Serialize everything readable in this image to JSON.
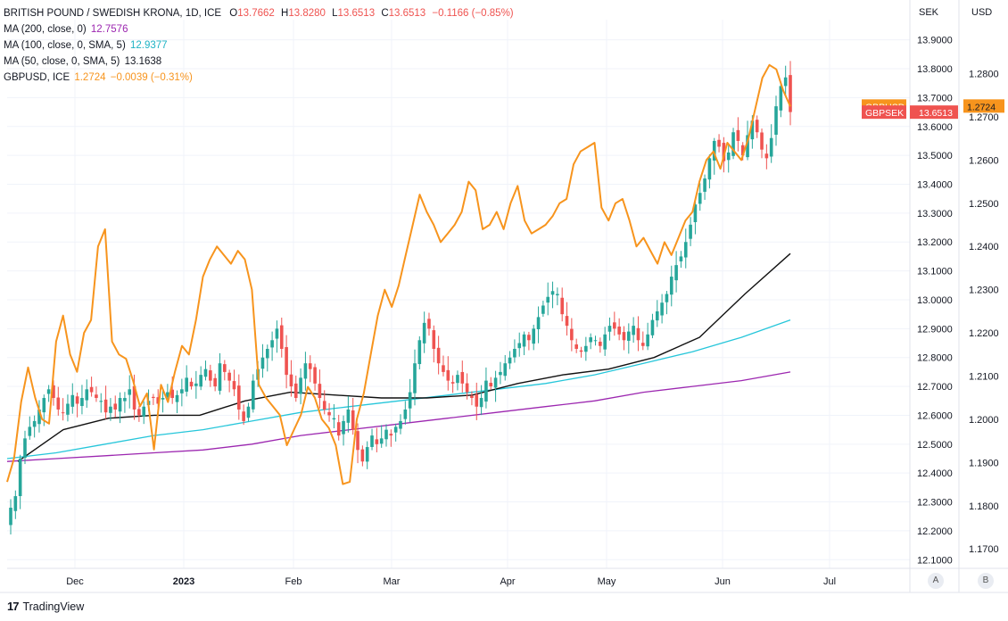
{
  "legend": {
    "symbol": "BRITISH POUND / SWEDISH KRONA, 1D, ICE",
    "o_label": "O",
    "o": "13.7662",
    "h_label": "H",
    "h": "13.8280",
    "l_label": "L",
    "l": "13.6513",
    "c_label": "C",
    "c": "13.6513",
    "change": "−0.1166 (−0.85%)",
    "ma200_label": "MA (200, close, 0)",
    "ma200_value": "12.7576",
    "ma100_label": "MA (100, close, 0, SMA, 5)",
    "ma100_value": "12.9377",
    "ma50_label": "MA (50, close, 0, SMA, 5)",
    "ma50_value": "13.1638",
    "gbpusd_label": "GBPUSD, ICE",
    "gbpusd_value": "1.2724",
    "gbpusd_change": "−0.0039 (−0.31%)"
  },
  "axis_headers": {
    "sek": "SEK",
    "usd": "USD"
  },
  "scale_buttons": {
    "a": "A",
    "b": "B"
  },
  "footer": {
    "brand": "TradingView",
    "logo": "17"
  },
  "colors": {
    "up": "#26a69a",
    "down": "#ef5350",
    "gbpusd": "#f7941d",
    "ma200": "#9c27b0",
    "ma100": "#26c6da",
    "ma50": "#000000",
    "grid": "#f0f3fa",
    "text": "#131722"
  },
  "chart_data": {
    "type": "candlestick",
    "title": "BRITISH POUND / SWEDISH KRONA, 1D, ICE",
    "x_ticks": [
      "Dec",
      "2023",
      "Feb",
      "Mar",
      "Apr",
      "May",
      "Jun",
      "Jul"
    ],
    "y_left_ticks": [
      "13.9000",
      "13.8000",
      "13.7000",
      "13.6000",
      "13.5000",
      "13.4000",
      "13.3000",
      "13.2000",
      "13.1000",
      "13.0000",
      "12.9000",
      "12.8000",
      "12.7000",
      "12.6000",
      "12.5000",
      "12.4000",
      "12.3000",
      "12.2000",
      "12.1000"
    ],
    "y_right_ticks": [
      "1.2800",
      "1.2700",
      "1.2600",
      "1.2500",
      "1.2400",
      "1.2300",
      "1.2200",
      "1.2100",
      "1.2000",
      "1.1900",
      "1.1800",
      "1.1700"
    ],
    "ylim_sek": [
      12.07,
      13.97
    ],
    "ylim_usd": [
      1.1655,
      1.2925
    ],
    "last_labels": {
      "gbpusd": {
        "name": "GBPUSD",
        "value": "1.2724"
      },
      "gbpsek": {
        "name": "GBPSEK",
        "value": "13.6513"
      }
    },
    "gbpsek_close": [
      12.28,
      12.32,
      12.45,
      12.52,
      12.56,
      12.58,
      12.62,
      12.66,
      12.69,
      12.66,
      12.62,
      12.61,
      12.64,
      12.67,
      12.64,
      12.66,
      12.69,
      12.68,
      12.66,
      12.65,
      12.61,
      12.63,
      12.62,
      12.66,
      12.66,
      12.69,
      12.62,
      12.6,
      12.63,
      12.65,
      12.66,
      12.64,
      12.66,
      12.68,
      12.66,
      12.67,
      12.69,
      12.73,
      12.7,
      12.71,
      12.74,
      12.76,
      12.72,
      12.7,
      12.78,
      12.75,
      12.72,
      12.69,
      12.62,
      12.58,
      12.63,
      12.72,
      12.76,
      12.8,
      12.83,
      12.86,
      12.9,
      12.83,
      12.74,
      12.7,
      12.66,
      12.73,
      12.78,
      12.76,
      12.71,
      12.66,
      12.62,
      12.6,
      12.59,
      12.53,
      12.58,
      12.62,
      12.55,
      12.48,
      12.44,
      12.49,
      12.53,
      12.5,
      12.52,
      12.55,
      12.53,
      12.56,
      12.58,
      12.62,
      12.68,
      12.78,
      12.86,
      12.92,
      12.9,
      12.83,
      12.78,
      12.75,
      12.72,
      12.71,
      12.74,
      12.71,
      12.68,
      12.66,
      12.63,
      12.66,
      12.72,
      12.7,
      12.73,
      12.75,
      12.78,
      12.8,
      12.83,
      12.85,
      12.88,
      12.86,
      12.9,
      12.94,
      12.98,
      13.01,
      13.03,
      13.02,
      12.95,
      12.91,
      12.86,
      12.83,
      12.82,
      12.84,
      12.87,
      12.86,
      12.84,
      12.88,
      12.91,
      12.9,
      12.88,
      12.86,
      12.89,
      12.91,
      12.86,
      12.84,
      12.88,
      12.93,
      12.96,
      12.99,
      13.02,
      13.08,
      13.12,
      13.15,
      13.2,
      13.26,
      13.33,
      13.37,
      13.42,
      13.49,
      13.55,
      13.53,
      13.48,
      13.51,
      13.58,
      13.55,
      13.5,
      13.57,
      13.62,
      13.58,
      13.52,
      13.49,
      13.56,
      13.67,
      13.74,
      13.77,
      13.65
    ],
    "gbpusd": [
      1.1855,
      1.191,
      1.204,
      1.212,
      1.205,
      1.2,
      1.199,
      1.218,
      1.224,
      1.215,
      1.211,
      1.22,
      1.223,
      1.24,
      1.244,
      1.218,
      1.215,
      1.214,
      1.209,
      1.203,
      1.206,
      1.193,
      1.208,
      1.204,
      1.211,
      1.217,
      1.215,
      1.223,
      1.233,
      1.237,
      1.24,
      1.238,
      1.236,
      1.239,
      1.237,
      1.23,
      1.208,
      1.205,
      1.203,
      1.201,
      1.194,
      1.1975,
      1.201,
      1.2075,
      1.205,
      1.2,
      1.198,
      1.194,
      1.185,
      1.1855,
      1.2,
      1.206,
      1.215,
      1.224,
      1.23,
      1.226,
      1.231,
      1.238,
      1.245,
      1.252,
      1.248,
      1.245,
      1.241,
      1.243,
      1.245,
      1.248,
      1.255,
      1.253,
      1.244,
      1.245,
      1.248,
      1.244,
      1.25,
      1.254,
      1.246,
      1.243,
      1.244,
      1.245,
      1.247,
      1.25,
      1.251,
      1.259,
      1.262,
      1.263,
      1.264,
      1.249,
      1.246,
      1.25,
      1.251,
      1.246,
      1.24,
      1.242,
      1.239,
      1.236,
      1.241,
      1.238,
      1.242,
      1.246,
      1.248,
      1.255,
      1.26,
      1.262,
      1.258,
      1.264,
      1.262,
      1.26,
      1.265,
      1.272,
      1.279,
      1.282,
      1.281,
      1.276,
      1.2724
    ],
    "ma200": [
      12.44,
      12.45,
      12.46,
      12.47,
      12.48,
      12.5,
      12.53,
      12.55,
      12.57,
      12.59,
      12.61,
      12.63,
      12.65,
      12.68,
      12.7,
      12.72,
      12.75
    ],
    "ma100": [
      12.45,
      12.47,
      12.5,
      12.53,
      12.55,
      12.58,
      12.61,
      12.63,
      12.65,
      12.67,
      12.69,
      12.71,
      12.74,
      12.78,
      12.82,
      12.87,
      12.93
    ],
    "ma50": [
      12.44,
      12.55,
      12.59,
      12.6,
      12.6,
      12.65,
      12.68,
      12.67,
      12.66,
      12.66,
      12.67,
      12.71,
      12.74,
      12.76,
      12.8,
      12.87,
      13.02,
      13.16
    ]
  }
}
